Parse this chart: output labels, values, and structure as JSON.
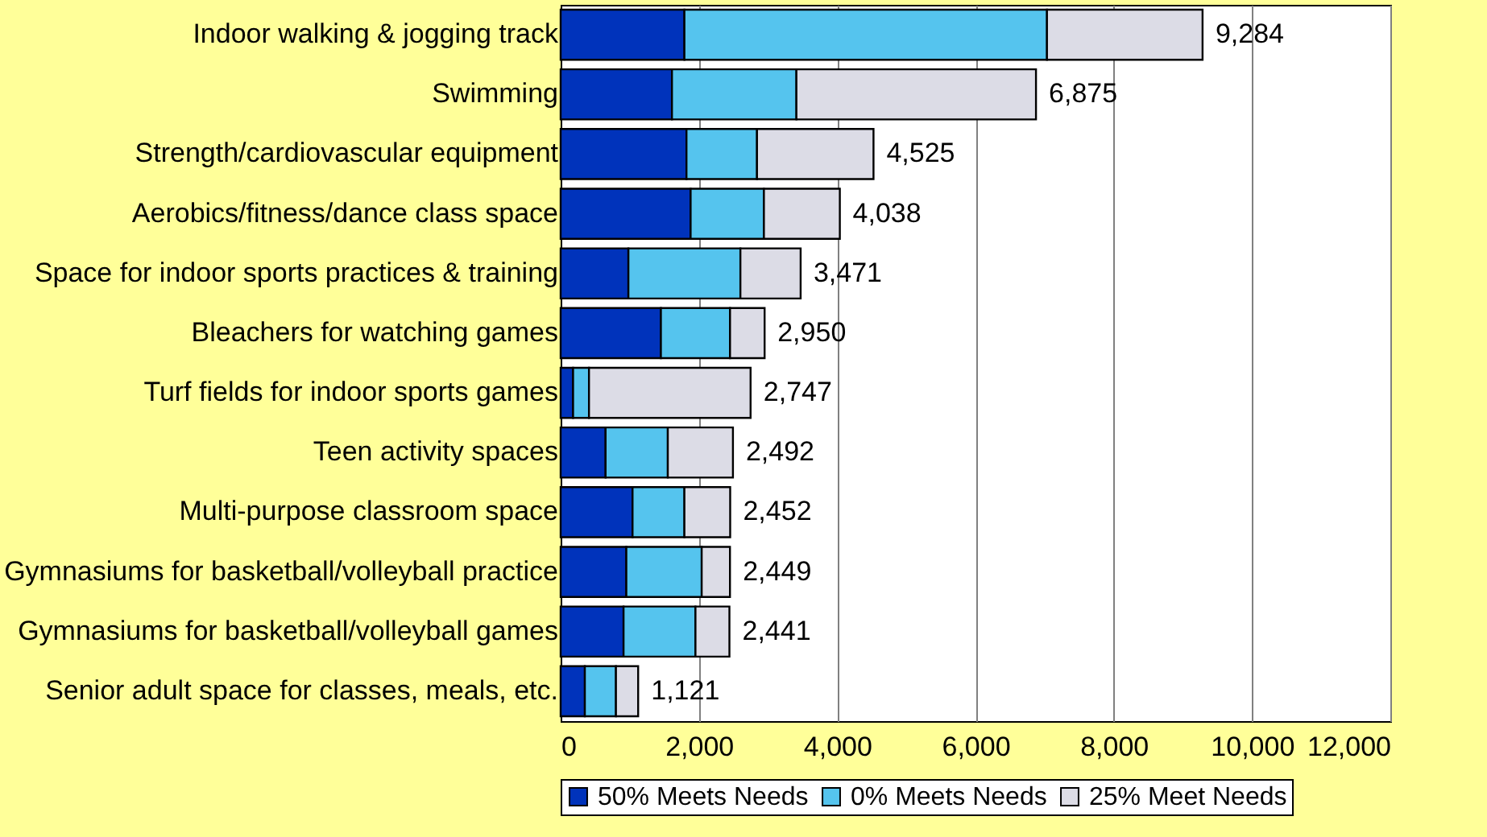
{
  "chart_data": {
    "type": "bar",
    "orientation": "horizontal",
    "stacked": true,
    "categories": [
      "Indoor walking & jogging track",
      "Swimming",
      "Strength/cardiovascular equipment",
      "Aerobics/fitness/dance class space",
      "Space for indoor sports practices & training",
      "Bleachers for watching games",
      "Turf fields for indoor sports games",
      "Teen activity spaces",
      "Multi-purpose classroom space",
      "Gymnasiums for basketball/volleyball practice",
      "Gymnasiums for basketball/volleyball games",
      "Senior adult space for classes, meals, etc."
    ],
    "series": [
      {
        "name": "50% Meets Needs",
        "color": "#0033bb",
        "values": [
          1790,
          1610,
          1820,
          1880,
          980,
          1450,
          180,
          650,
          1040,
          950,
          910,
          350
        ]
      },
      {
        "name": "0% Meets Needs",
        "color": "#55c4ee",
        "values": [
          5244,
          1800,
          1020,
          1060,
          1620,
          1000,
          230,
          900,
          750,
          1090,
          1040,
          450
        ]
      },
      {
        "name": "25% Meet Needs",
        "color": "#dcdce6",
        "values": [
          2250,
          3465,
          1685,
          1098,
          871,
          500,
          2337,
          942,
          662,
          409,
          491,
          321
        ]
      }
    ],
    "totals": [
      "9,284",
      "6,875",
      "4,525",
      "4,038",
      "3,471",
      "2,950",
      "2,747",
      "2,492",
      "2,452",
      "2,449",
      "2,441",
      "1,121"
    ],
    "xlim": [
      0,
      12000
    ],
    "xticks": [
      {
        "value": 0,
        "label": "0"
      },
      {
        "value": 2000,
        "label": "2,000"
      },
      {
        "value": 4000,
        "label": "4,000"
      },
      {
        "value": 6000,
        "label": "6,000"
      },
      {
        "value": 8000,
        "label": "8,000"
      },
      {
        "value": 10000,
        "label": "10,000"
      },
      {
        "value": 12000,
        "label": "12,000"
      }
    ],
    "grid": "x",
    "legend": "bottom"
  }
}
